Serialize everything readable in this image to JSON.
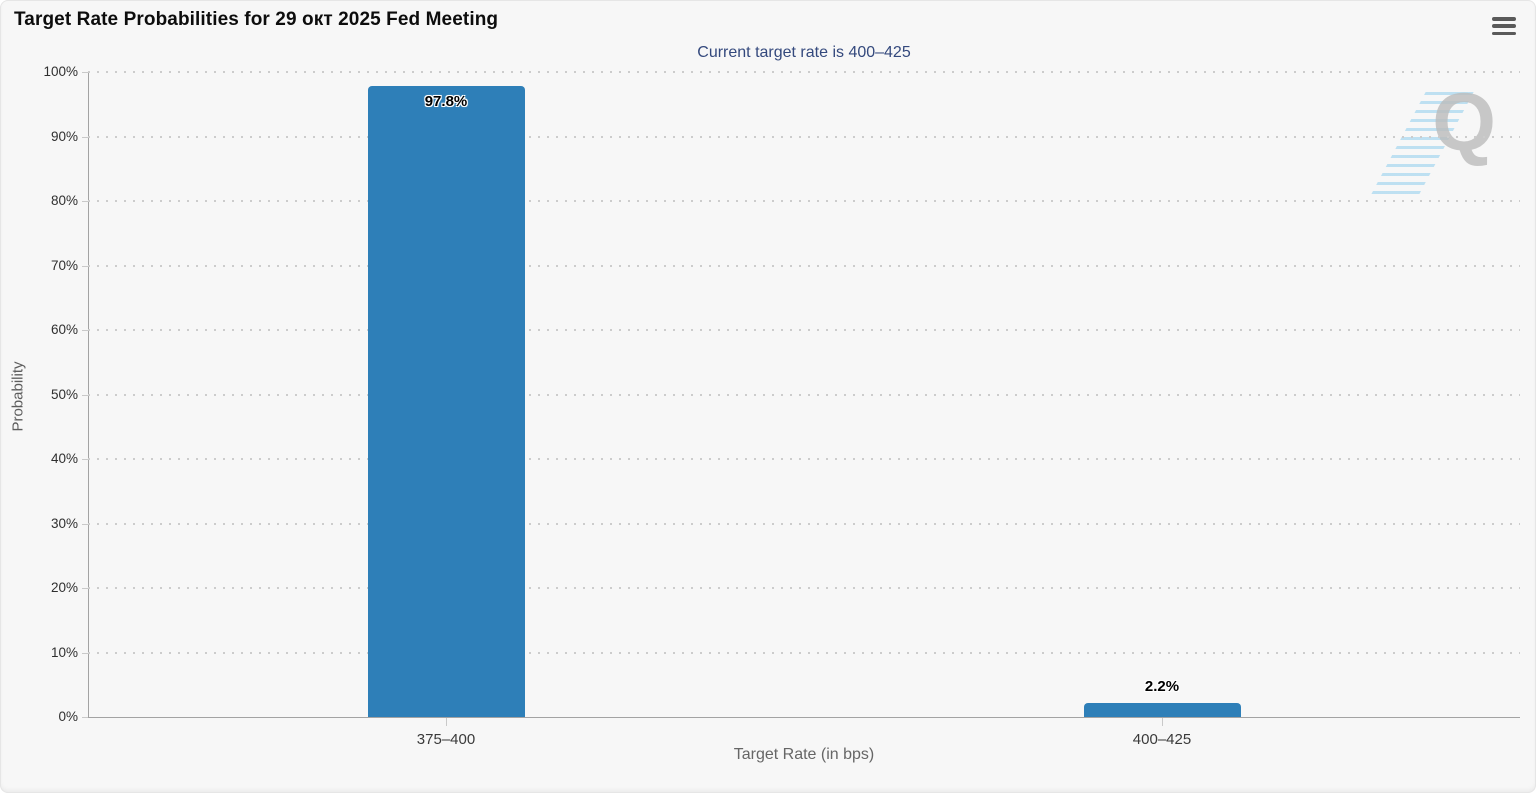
{
  "header": {
    "title": "Target Rate Probabilities for 29 окт 2025 Fed Meeting",
    "menu_icon": "hamburger-menu-icon"
  },
  "chart_data": {
    "type": "bar",
    "title": "Current target rate is 400–425",
    "categories": [
      "375–400",
      "400–425"
    ],
    "values": [
      97.8,
      2.2
    ],
    "bar_labels": [
      "97.8%",
      "2.2%"
    ],
    "xlabel": "Target Rate (in bps)",
    "ylabel": "Probability",
    "ylim": [
      0,
      100
    ],
    "ytick_step": 10,
    "ytick_labels": [
      "0%",
      "10%",
      "20%",
      "30%",
      "40%",
      "50%",
      "60%",
      "70%",
      "80%",
      "90%",
      "100%"
    ],
    "grid": "horizontal dotted",
    "legend": "none",
    "bar_color": "#2e7fb8",
    "subtitle_color": "#34497d",
    "background_color": "#f7f7f7"
  },
  "watermark": {
    "letter": "Q"
  }
}
